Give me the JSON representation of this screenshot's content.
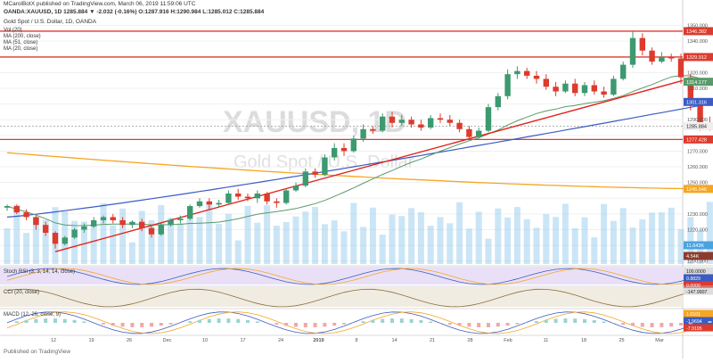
{
  "header": {
    "line1": "MCarolBotX published on TradingView.com, March 06, 2019 11:59:06 UTC",
    "line2": "OANDA:XAUUSD, 1D 1285.884 ▼ -2.032 (-0.16%) O:1287.916 H:1290.984 L:1285.012 C:1285.884",
    "line3": "Gold Spot / U.S. Dollar, 1D, OANDA"
  },
  "legend": [
    "Vol (20)",
    "MA (200, close)",
    "MA (51, close)",
    "MA (20, close)"
  ],
  "watermark": {
    "symbol": "XAUUSD, 1D",
    "name": "Gold Spot / U.S. Dollar"
  },
  "footer": {
    "brand": "Published on TradingView"
  },
  "panes": {
    "stoch": {
      "label": "Stoch RSI (3, 3, 14, 14, close)",
      "values": [
        "100.0000",
        "0.8829",
        "0.0000"
      ]
    },
    "cci": {
      "label": "CCI (20, close)",
      "values": [
        "-147.9907"
      ]
    },
    "macd": {
      "label": "MACD (12, 26, close, 9)",
      "values": [
        "1.0101",
        "-1.9694",
        "-7.9195"
      ]
    }
  },
  "price_axis": {
    "ticks": [
      "1350.000",
      "1340.000",
      "1320.000",
      "1310.000",
      "1290.000",
      "1270.000",
      "1260.000",
      "1250.000",
      "1230.000",
      "1220.000",
      "1210.000",
      "1200.000"
    ]
  },
  "price_labels": {
    "res_upper": "1346.382",
    "res_lower": "1329.912",
    "ma20": "1314.177",
    "ma51": "1301.316",
    "last": "1285.884",
    "support": "1277.428",
    "ma200": "1245.946",
    "vol_ma": "11.643K",
    "vol": "4.54K"
  },
  "colors": {
    "up": "#3d9970",
    "down": "#dc3b2e",
    "ma200": "#f5a623",
    "ma51": "#3b5cc4",
    "ma20": "#5a9a6a",
    "trend": "#e2231a",
    "volume": "#9fd0ee"
  },
  "chart_data": {
    "type": "candlestick",
    "title": "Gold Spot / U.S. Dollar, 1D, OANDA",
    "x_axis_labels": [
      "12",
      "19",
      "26",
      "Dec",
      "10",
      "17",
      "24",
      "2019",
      "8",
      "14",
      "21",
      "28",
      "Feb",
      "11",
      "18",
      "25",
      "Mar"
    ],
    "ylim": [
      1197,
      1356
    ],
    "candles": [
      [
        1234,
        1236,
        1232,
        1235
      ],
      [
        1235,
        1236,
        1230,
        1231
      ],
      [
        1231,
        1233,
        1226,
        1228
      ],
      [
        1228,
        1229,
        1220,
        1223
      ],
      [
        1223,
        1225,
        1216,
        1218
      ],
      [
        1218,
        1219,
        1208,
        1211
      ],
      [
        1211,
        1216,
        1210,
        1215
      ],
      [
        1215,
        1221,
        1214,
        1220
      ],
      [
        1220,
        1224,
        1218,
        1222
      ],
      [
        1222,
        1228,
        1221,
        1226
      ],
      [
        1226,
        1229,
        1224,
        1228
      ],
      [
        1228,
        1230,
        1224,
        1226
      ],
      [
        1226,
        1228,
        1221,
        1223
      ],
      [
        1223,
        1226,
        1221,
        1225
      ],
      [
        1225,
        1227,
        1219,
        1221
      ],
      [
        1221,
        1223,
        1215,
        1217
      ],
      [
        1217,
        1224,
        1216,
        1223
      ],
      [
        1223,
        1227,
        1222,
        1226
      ],
      [
        1226,
        1229,
        1224,
        1227
      ],
      [
        1227,
        1236,
        1226,
        1235
      ],
      [
        1235,
        1240,
        1234,
        1238
      ],
      [
        1238,
        1240,
        1233,
        1236
      ],
      [
        1236,
        1239,
        1234,
        1237
      ],
      [
        1237,
        1245,
        1236,
        1243
      ],
      [
        1243,
        1246,
        1239,
        1241
      ],
      [
        1241,
        1243,
        1238,
        1240
      ],
      [
        1240,
        1245,
        1237,
        1243
      ],
      [
        1243,
        1244,
        1236,
        1238
      ],
      [
        1238,
        1240,
        1234,
        1237
      ],
      [
        1237,
        1246,
        1236,
        1245
      ],
      [
        1245,
        1250,
        1244,
        1248
      ],
      [
        1248,
        1259,
        1247,
        1257
      ],
      [
        1257,
        1259,
        1253,
        1255
      ],
      [
        1255,
        1268,
        1254,
        1266
      ],
      [
        1266,
        1275,
        1264,
        1272
      ],
      [
        1272,
        1275,
        1267,
        1270
      ],
      [
        1270,
        1280,
        1269,
        1278
      ],
      [
        1278,
        1287,
        1276,
        1284
      ],
      [
        1284,
        1286,
        1281,
        1283
      ],
      [
        1283,
        1294,
        1282,
        1292
      ],
      [
        1292,
        1295,
        1285,
        1288
      ],
      [
        1288,
        1293,
        1286,
        1290
      ],
      [
        1290,
        1292,
        1285,
        1287
      ],
      [
        1287,
        1290,
        1283,
        1285
      ],
      [
        1285,
        1293,
        1284,
        1291
      ],
      [
        1291,
        1294,
        1288,
        1290
      ],
      [
        1290,
        1293,
        1286,
        1288
      ],
      [
        1288,
        1290,
        1282,
        1284
      ],
      [
        1284,
        1286,
        1277,
        1279
      ],
      [
        1279,
        1285,
        1278,
        1283
      ],
      [
        1283,
        1300,
        1282,
        1298
      ],
      [
        1298,
        1307,
        1296,
        1305
      ],
      [
        1305,
        1322,
        1303,
        1319
      ],
      [
        1319,
        1324,
        1316,
        1321
      ],
      [
        1321,
        1323,
        1316,
        1318
      ],
      [
        1318,
        1321,
        1313,
        1316
      ],
      [
        1316,
        1319,
        1309,
        1311
      ],
      [
        1311,
        1314,
        1305,
        1308
      ],
      [
        1308,
        1315,
        1307,
        1313
      ],
      [
        1313,
        1316,
        1305,
        1307
      ],
      [
        1307,
        1314,
        1305,
        1312
      ],
      [
        1312,
        1315,
        1306,
        1308
      ],
      [
        1308,
        1311,
        1304,
        1306
      ],
      [
        1306,
        1318,
        1305,
        1316
      ],
      [
        1316,
        1327,
        1315,
        1325
      ],
      [
        1325,
        1346,
        1323,
        1342
      ],
      [
        1342,
        1345,
        1331,
        1334
      ],
      [
        1334,
        1336,
        1325,
        1327
      ],
      [
        1327,
        1333,
        1326,
        1330
      ],
      [
        1330,
        1332,
        1327,
        1329
      ],
      [
        1329,
        1332,
        1313,
        1317
      ],
      [
        1317,
        1319,
        1296,
        1299
      ],
      [
        1299,
        1301,
        1283,
        1287
      ],
      [
        1287,
        1292,
        1283,
        1286
      ],
      [
        1287,
        1291,
        1285,
        1286
      ]
    ],
    "moving_averages": {
      "ma200": {
        "name": "MA (200, close)",
        "start": 1269,
        "end": 1245.946
      },
      "ma51": {
        "name": "MA (51, close)",
        "start": 1228,
        "end": 1301.316
      },
      "ma20": {
        "name": "MA (20, close)",
        "start": 1226,
        "end": 1314.177
      }
    },
    "horizontal_levels": [
      1346.382,
      1329.912,
      1277.428
    ],
    "trendline": {
      "from": [
        5,
        1206
      ],
      "to": [
        75,
        1323
      ]
    },
    "volume": {
      "last": "4.54K",
      "ma": "11.643K"
    }
  }
}
